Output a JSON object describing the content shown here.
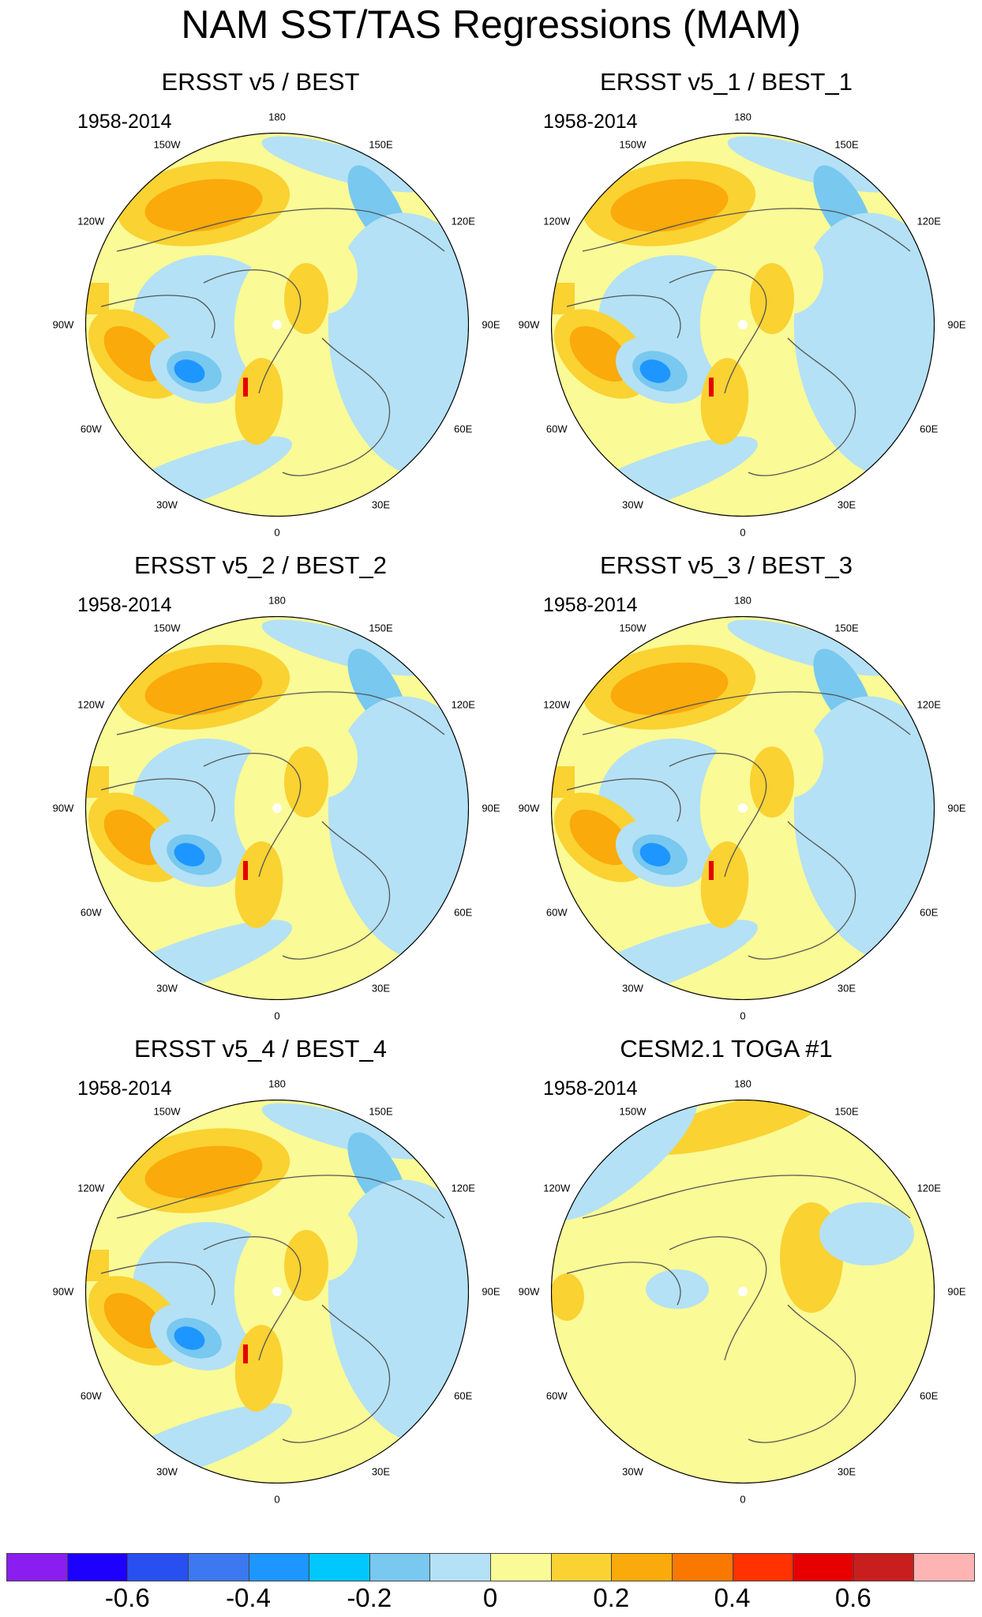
{
  "title": "NAM SST/TAS Regressions (MAM)",
  "colors": {
    "levels": [
      "#8a1ef0",
      "#1e00ff",
      "#2850f0",
      "#3c78f0",
      "#1e96ff",
      "#00c8ff",
      "#78c8f0",
      "#b4e1f5",
      "#fafa96",
      "#fad232",
      "#faaa0a",
      "#fa7800",
      "#ff3200",
      "#e60000",
      "#c81e1e",
      "#ffb4b4"
    ],
    "land_outline": "#555555",
    "frame": "#000000"
  },
  "longitude_labels": [
    "180",
    "150E",
    "120E",
    "90E",
    "60E",
    "30E",
    "0",
    "30W",
    "60W",
    "90W",
    "120W",
    "150W"
  ],
  "panels": [
    {
      "title": "ERSST v5 / BEST",
      "period": "1958-2014",
      "style": "obs",
      "amp": 1.0
    },
    {
      "title": "ERSST v5_1 / BEST_1",
      "period": "1958-2014",
      "style": "obs",
      "amp": 0.95
    },
    {
      "title": "ERSST v5_2 / BEST_2",
      "period": "1958-2014",
      "style": "obs",
      "amp": 1.0
    },
    {
      "title": "ERSST v5_3 / BEST_3",
      "period": "1958-2014",
      "style": "obs",
      "amp": 0.95
    },
    {
      "title": "ERSST v5_4 / BEST_4",
      "period": "1958-2014",
      "style": "obs",
      "amp": 0.9
    },
    {
      "title": "CESM2.1 TOGA #1",
      "period": "1958-2014",
      "style": "model",
      "amp": 0.8
    }
  ],
  "colorbar": {
    "labels": [
      "-0.6",
      "-0.4",
      "-0.2",
      "0",
      "0.2",
      "0.4",
      "0.6"
    ],
    "label_after_box": [
      2,
      4,
      6,
      8,
      10,
      12,
      14
    ]
  }
}
